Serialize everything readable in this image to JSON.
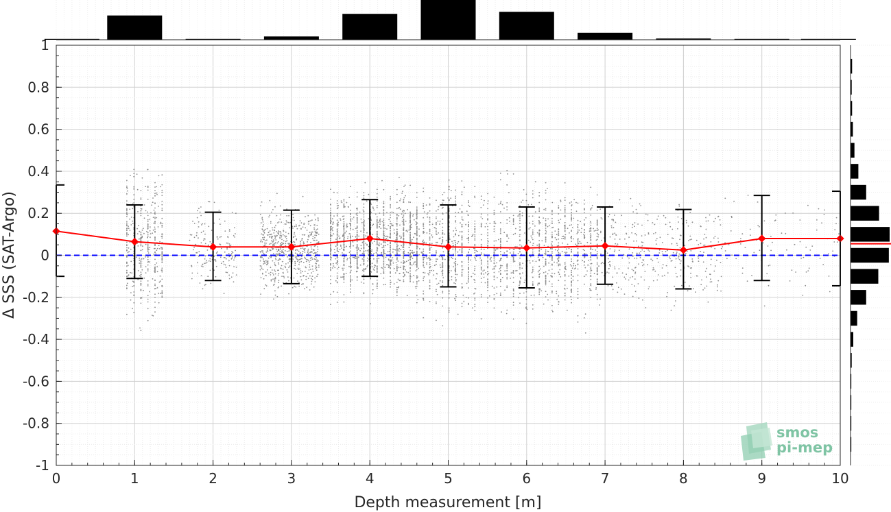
{
  "chart_data": {
    "type": "scatter",
    "title": "",
    "xlabel": "Depth measurement [m]",
    "ylabel": "Δ SSS (SAT-Argo)",
    "xlim": [
      0,
      10
    ],
    "ylim": [
      -1,
      1
    ],
    "x_ticks": [
      "0",
      "1",
      "2",
      "3",
      "4",
      "5",
      "6",
      "7",
      "8",
      "9",
      "10"
    ],
    "y_ticks": [
      "1",
      "0.8",
      "0.6",
      "0.4",
      "0.2",
      "0",
      "-0.2",
      "-0.4",
      "-0.6",
      "-0.8",
      "-1"
    ],
    "grid": true,
    "reference_line": {
      "y": 0,
      "style": "dashed",
      "color": "#0000ff"
    },
    "mean_series": {
      "color": "#ff0000",
      "x": [
        0,
        1,
        2,
        3,
        4,
        5,
        6,
        7,
        8,
        9,
        10
      ],
      "y": [
        0.115,
        0.065,
        0.04,
        0.04,
        0.08,
        0.04,
        0.035,
        0.045,
        0.025,
        0.08,
        0.08
      ]
    },
    "error_bars": {
      "color": "#000000",
      "x": [
        1,
        2,
        3,
        4,
        5,
        6,
        7,
        8,
        9
      ],
      "lower": [
        -0.11,
        -0.12,
        -0.135,
        -0.1,
        -0.15,
        -0.155,
        -0.138,
        -0.16,
        -0.12
      ],
      "upper": [
        0.24,
        0.205,
        0.215,
        0.265,
        0.24,
        0.23,
        0.23,
        0.218,
        0.285
      ]
    },
    "edge_brackets": [
      {
        "x": 0,
        "lower": -0.1,
        "upper": 0.335,
        "side": "left"
      },
      {
        "x": 10,
        "lower": -0.145,
        "upper": 0.305,
        "side": "right"
      }
    ],
    "scatter_clusters": [
      {
        "x_from": 0.9,
        "x_to": 1.35,
        "y_center": 0.05,
        "y_spread": 0.26,
        "count": 450,
        "vertical_lines": true
      },
      {
        "x_from": 1.7,
        "x_to": 2.3,
        "y_center": 0.03,
        "y_spread": 0.15,
        "count": 160,
        "vertical_lines": false
      },
      {
        "x_from": 2.6,
        "x_to": 3.35,
        "y_center": 0.03,
        "y_spread": 0.15,
        "count": 620,
        "vertical_lines": false
      },
      {
        "x_from": 3.5,
        "x_to": 4.6,
        "y_center": 0.06,
        "y_spread": 0.18,
        "count": 1500,
        "vertical_lines": true
      },
      {
        "x_from": 4.6,
        "x_to": 6.9,
        "y_center": 0.03,
        "y_spread": 0.22,
        "count": 1700,
        "vertical_lines": true
      },
      {
        "x_from": 6.9,
        "x_to": 8.5,
        "y_center": 0.02,
        "y_spread": 0.18,
        "count": 380,
        "vertical_lines": false
      },
      {
        "x_from": 8.5,
        "x_to": 10,
        "y_center": 0.07,
        "y_spread": 0.18,
        "count": 90,
        "vertical_lines": false
      }
    ],
    "top_histogram": {
      "bin_centers": [
        0.2,
        1.0,
        2.0,
        3.0,
        4.0,
        5.0,
        6.0,
        7.0,
        8.0,
        9.0,
        9.85
      ],
      "heights": [
        0.02,
        0.59,
        0.02,
        0.08,
        0.63,
        1.0,
        0.68,
        0.17,
        0.03,
        0.02,
        0.02
      ]
    },
    "right_histogram": {
      "bin_centers": [
        0.9,
        0.8,
        0.7,
        0.6,
        0.5,
        0.4,
        0.3,
        0.2,
        0.1,
        0.0,
        -0.1,
        -0.2,
        -0.3,
        -0.4,
        -0.5,
        -0.6,
        -0.7,
        -0.8,
        -0.9
      ],
      "widths": [
        0.04,
        0.03,
        0.04,
        0.06,
        0.1,
        0.2,
        0.4,
        0.73,
        1.0,
        0.98,
        0.71,
        0.4,
        0.17,
        0.07,
        0.03,
        0.02,
        0.02,
        0.02,
        0.02
      ],
      "mean_line_y": 0.055,
      "mean_line_color": "#ff0000"
    }
  },
  "logo": {
    "line1": "smos",
    "line2": "pi-mep"
  }
}
